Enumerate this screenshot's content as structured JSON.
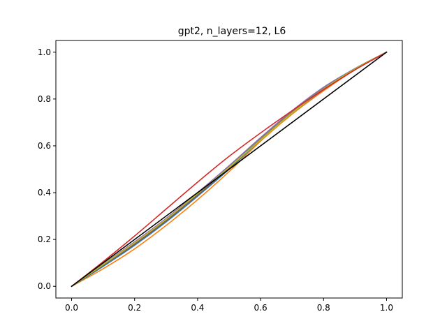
{
  "chart_data": {
    "type": "line",
    "title": "gpt2, n_layers=12, L6",
    "xlabel": "",
    "ylabel": "",
    "xlim": [
      -0.05,
      1.05
    ],
    "ylim": [
      -0.05,
      1.05
    ],
    "xticks": [
      "0.0",
      "0.2",
      "0.4",
      "0.6",
      "0.8",
      "1.0"
    ],
    "yticks": [
      "0.0",
      "0.2",
      "0.4",
      "0.6",
      "0.8",
      "1.0"
    ],
    "grid": false,
    "legend": "none",
    "series": [
      {
        "color": "#ff7f0e",
        "x": [
          0,
          0.1,
          0.2,
          0.3,
          0.4,
          0.5,
          0.6,
          0.7,
          0.8,
          0.9,
          1.0
        ],
        "y": [
          0,
          0.075,
          0.16,
          0.26,
          0.37,
          0.49,
          0.62,
          0.735,
          0.835,
          0.925,
          1.0
        ]
      },
      {
        "color": "#1f77b4",
        "x": [
          0,
          0.1,
          0.2,
          0.3,
          0.4,
          0.5,
          0.6,
          0.7,
          0.8,
          0.9,
          1.0
        ],
        "y": [
          0,
          0.085,
          0.175,
          0.275,
          0.385,
          0.5,
          0.625,
          0.74,
          0.84,
          0.925,
          1.0
        ]
      },
      {
        "color": "#2ca02c",
        "x": [
          0,
          0.1,
          0.2,
          0.3,
          0.4,
          0.5,
          0.6,
          0.7,
          0.8,
          0.9,
          1.0
        ],
        "y": [
          0,
          0.09,
          0.185,
          0.285,
          0.395,
          0.51,
          0.63,
          0.745,
          0.845,
          0.93,
          1.0
        ]
      },
      {
        "color": "#9467bd",
        "x": [
          0,
          0.1,
          0.2,
          0.3,
          0.4,
          0.5,
          0.6,
          0.7,
          0.8,
          0.9,
          1.0
        ],
        "y": [
          0,
          0.095,
          0.19,
          0.29,
          0.4,
          0.515,
          0.635,
          0.75,
          0.85,
          0.93,
          1.0
        ]
      },
      {
        "color": "#8c564b",
        "x": [
          0,
          0.1,
          0.2,
          0.3,
          0.4,
          0.5,
          0.6,
          0.7,
          0.8,
          0.9,
          1.0
        ],
        "y": [
          0,
          0.09,
          0.18,
          0.28,
          0.39,
          0.505,
          0.628,
          0.743,
          0.843,
          0.928,
          1.0
        ]
      },
      {
        "color": "#7f7f7f",
        "x": [
          0,
          0.1,
          0.2,
          0.3,
          0.4,
          0.5,
          0.6,
          0.7,
          0.8,
          0.9,
          1.0
        ],
        "y": [
          0,
          0.092,
          0.185,
          0.285,
          0.395,
          0.512,
          0.632,
          0.747,
          0.847,
          0.93,
          1.0
        ]
      },
      {
        "color": "#bcbd22",
        "x": [
          0,
          0.1,
          0.2,
          0.3,
          0.4,
          0.5,
          0.6,
          0.7,
          0.8,
          0.9,
          1.0
        ],
        "y": [
          0,
          0.093,
          0.186,
          0.286,
          0.396,
          0.508,
          0.625,
          0.74,
          0.842,
          0.928,
          1.0
        ]
      },
      {
        "color": "#d62728",
        "x": [
          0,
          0.1,
          0.2,
          0.3,
          0.4,
          0.5,
          0.6,
          0.7,
          0.8,
          0.9,
          1.0
        ],
        "y": [
          0,
          0.105,
          0.215,
          0.33,
          0.445,
          0.555,
          0.655,
          0.75,
          0.84,
          0.925,
          1.0
        ]
      },
      {
        "color": "#000000",
        "x": [
          0,
          1.0
        ],
        "y": [
          0,
          1.0
        ]
      }
    ]
  }
}
